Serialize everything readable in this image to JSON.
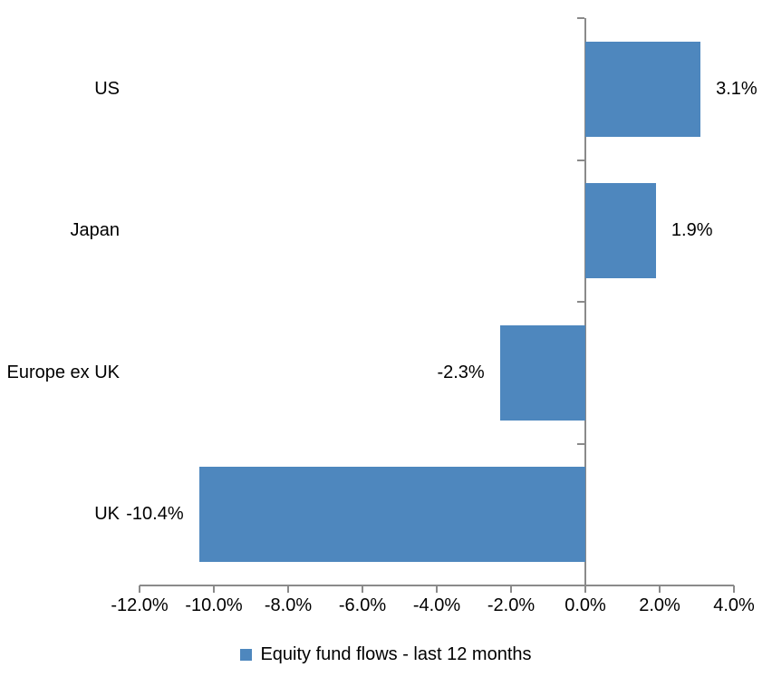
{
  "chart_data": {
    "type": "bar",
    "orientation": "horizontal",
    "categories": [
      "US",
      "Japan",
      "Europe ex UK",
      "UK"
    ],
    "series": [
      {
        "name": "Equity fund flows - last 12 months",
        "values": [
          3.1,
          1.9,
          -2.3,
          -10.4
        ]
      }
    ],
    "data_labels": [
      "3.1%",
      "1.9%",
      "-2.3%",
      "-10.4%"
    ],
    "x_ticks": [
      -12,
      -10,
      -8,
      -6,
      -4,
      -2,
      0,
      2,
      4
    ],
    "x_tick_labels": [
      "-12.0%",
      "-10.0%",
      "-8.0%",
      "-6.0%",
      "-4.0%",
      "-2.0%",
      "0.0%",
      "2.0%",
      "4.0%"
    ],
    "xlim": [
      -12,
      4
    ],
    "title": "",
    "xlabel": "",
    "ylabel": "",
    "grid": false,
    "legend": {
      "label": "Equity fund flows - last 12 months",
      "position": "bottom"
    },
    "colors": {
      "bar": "#4E87BE",
      "axis": "#8A8A8A",
      "text": "#000000",
      "background": "#FFFFFF"
    }
  }
}
